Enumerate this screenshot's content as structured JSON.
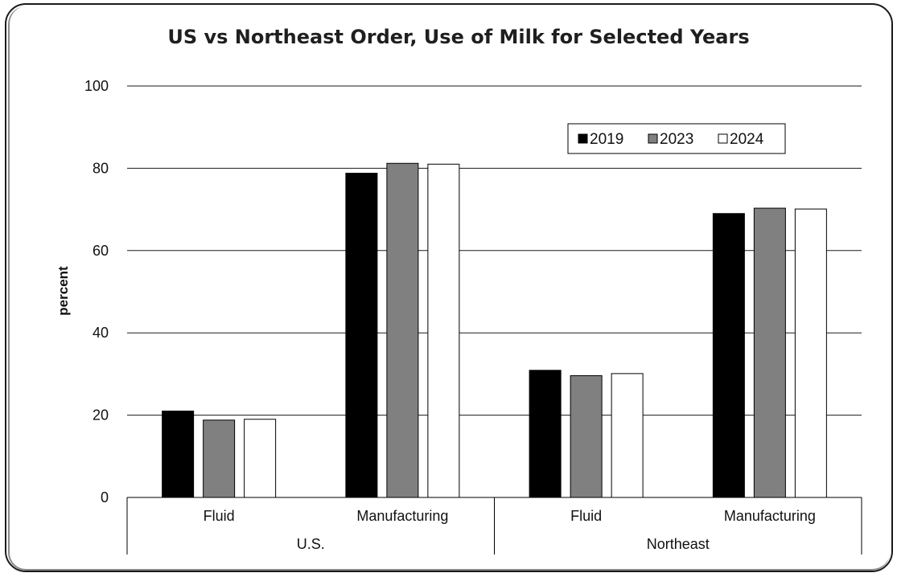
{
  "chart_data": {
    "type": "bar",
    "title": "US vs Northeast Order, Use of Milk for Selected Years",
    "ylabel": "percent",
    "xlabel": "",
    "ylim": [
      0,
      100
    ],
    "yticks": [
      0,
      20,
      40,
      60,
      80,
      100
    ],
    "grid": true,
    "legend_position": "top-right",
    "groups": [
      {
        "label": "U.S.",
        "categories": [
          "Fluid",
          "Manufacturing"
        ]
      },
      {
        "label": "Northeast",
        "categories": [
          "Fluid",
          "Manufacturing"
        ]
      }
    ],
    "categories": [
      "Fluid",
      "Manufacturing",
      "Fluid",
      "Manufacturing"
    ],
    "series": [
      {
        "name": "2019",
        "color": "#000000",
        "values": [
          21,
          78.8,
          30.9,
          69
        ]
      },
      {
        "name": "2023",
        "color": "#808080",
        "values": [
          18.8,
          81.2,
          29.6,
          70.3
        ]
      },
      {
        "name": "2024",
        "color": "#ffffff",
        "values": [
          19,
          81,
          30.1,
          70.1
        ]
      }
    ]
  }
}
